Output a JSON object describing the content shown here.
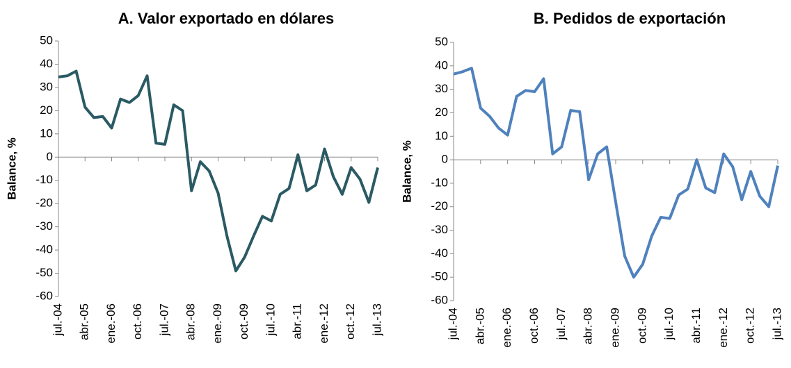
{
  "chart_data": [
    {
      "type": "line",
      "title": "A.   Valor exportado en dólares",
      "y_label": "Balance, %",
      "categories": [
        "jul.-04",
        null,
        null,
        "abr.-05",
        null,
        null,
        "ene.-06",
        null,
        null,
        "oct.-06",
        null,
        null,
        "jul.-07",
        null,
        null,
        "abr.-08",
        null,
        null,
        "ene.-09",
        null,
        null,
        "oct.-09",
        null,
        null,
        "jul.-10",
        null,
        null,
        "abr.-11",
        null,
        null,
        "ene.-12",
        null,
        null,
        "oct.-12",
        null,
        null,
        "jul.-13"
      ],
      "series": [
        {
          "color": "#2a5a64",
          "values": [
            34.5,
            35,
            37,
            21.5,
            17,
            17.5,
            12.5,
            25,
            23.5,
            26.5,
            35,
            6,
            5.5,
            22.5,
            20,
            -14.5,
            -2,
            -6,
            -15.5,
            -34,
            -49,
            -43,
            -34,
            -25.5,
            -27.5,
            -16,
            -13.5,
            1,
            -14.5,
            -12,
            3.5,
            -8.5,
            -16,
            -4.5,
            -9.5,
            -19.5,
            -4.5
          ]
        }
      ],
      "ylim": [
        -60,
        50
      ],
      "yticks": [
        -60,
        -50,
        -40,
        -30,
        -20,
        -10,
        0,
        10,
        20,
        30,
        40,
        50
      ]
    },
    {
      "type": "line",
      "title": "B.   Pedidos de exportación",
      "y_label": "Balance, %",
      "categories": [
        "jul.-04",
        null,
        null,
        "abr.-05",
        null,
        null,
        "ene.-06",
        null,
        null,
        "oct.-06",
        null,
        null,
        "jul.-07",
        null,
        null,
        "abr.-08",
        null,
        null,
        "ene.-09",
        null,
        null,
        "oct.-09",
        null,
        null,
        "jul.-10",
        null,
        null,
        "abr.-11",
        null,
        null,
        "ene.-12",
        null,
        null,
        "oct.-12",
        null,
        null,
        "jul.-13"
      ],
      "series": [
        {
          "color": "#4f81bd",
          "values": [
            36.5,
            37.5,
            39,
            22,
            18.5,
            13.5,
            10.5,
            27,
            29.5,
            29,
            34.5,
            2.5,
            5.5,
            21,
            20.5,
            -8.5,
            2.5,
            5.5,
            -18,
            -41,
            -50,
            -44.5,
            -32.5,
            -24.5,
            -25,
            -15,
            -12.5,
            0,
            -12,
            -14,
            2.5,
            -3,
            -17,
            -5,
            -15.5,
            -20,
            -2.5
          ]
        }
      ],
      "ylim": [
        -60,
        50
      ],
      "yticks": [
        -60,
        -50,
        -40,
        -30,
        -20,
        -10,
        0,
        10,
        20,
        30,
        40,
        50
      ]
    }
  ]
}
